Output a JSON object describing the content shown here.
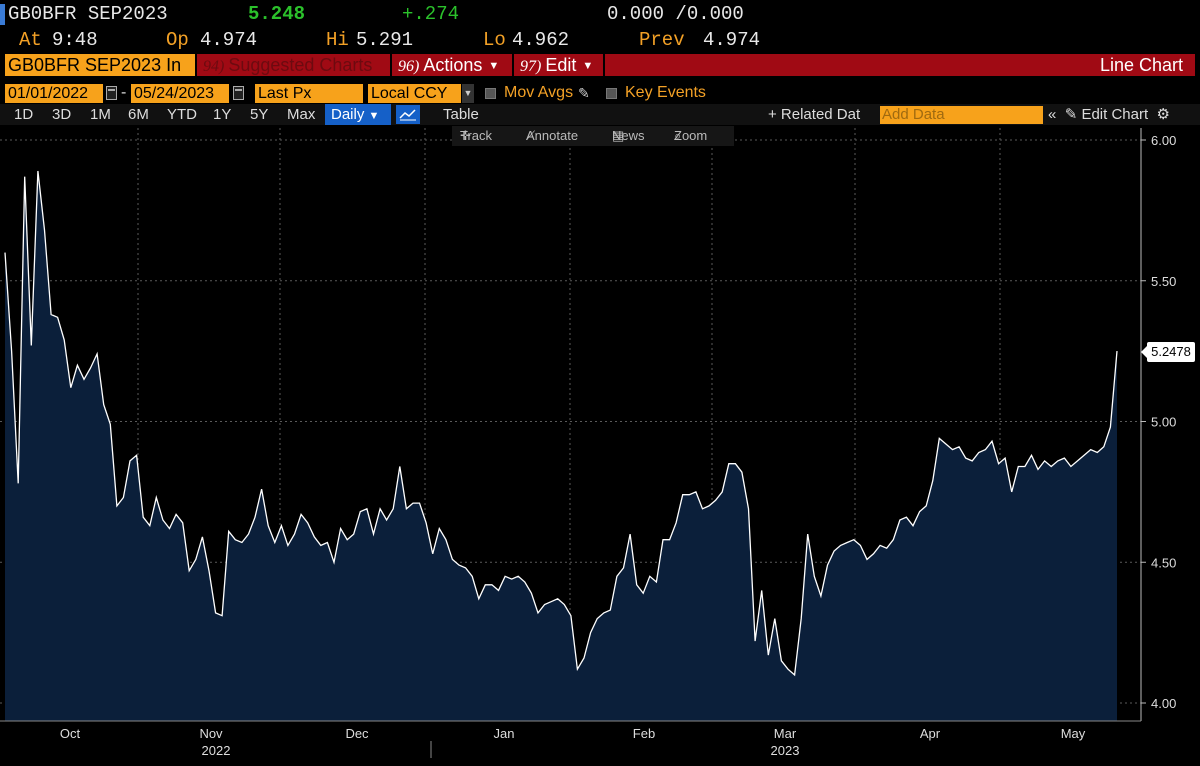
{
  "header": {
    "ticker": "GB0BFR SEP2023",
    "last": "5.248",
    "change": "+.274",
    "bid_ask": "0.000 /0.000",
    "at_label": "At",
    "time": "9:48",
    "op_label": "Op",
    "op": "4.974",
    "hi_label": "Hi",
    "hi": "5.291",
    "lo_label": "Lo",
    "lo": "4.962",
    "prev_label": "Prev",
    "prev": "4.974"
  },
  "menubar": {
    "ticker_field": "GB0BFR SEP2023 In",
    "suggested_num": "94)",
    "suggested_label": "Suggested Charts",
    "actions_num": "96)",
    "actions_label": "Actions",
    "edit_num": "97)",
    "edit_label": "Edit",
    "title": "Line Chart"
  },
  "controls": {
    "start_date": "01/01/2022",
    "dash": "-",
    "end_date": "05/24/2023",
    "field": "Last Px",
    "currency": "Local CCY",
    "mov_avgs": "Mov Avgs",
    "key_events": "Key Events"
  },
  "ranges": [
    "1D",
    "3D",
    "1M",
    "6M",
    "YTD",
    "1Y",
    "5Y",
    "Max"
  ],
  "period": "Daily",
  "table_label": "Table",
  "related_label": "+ Related Dat",
  "add_data_placeholder": "Add Data",
  "edit_chart_label": "Edit Chart",
  "tools": {
    "track": "Track",
    "annotate": "Annotate",
    "news": "News",
    "zoom": "Zoom"
  },
  "colors": {
    "amber": "#f3a126",
    "red_bar": "#a00a14",
    "selected_blue": "#1560c8",
    "area_fill": "#0b1f3a",
    "line": "#ffffff",
    "positive": "#2bc12b"
  },
  "chart_data": {
    "type": "area",
    "y_axis_side": "right",
    "ylim": [
      3.95,
      6.05
    ],
    "yticks": [
      "4.00",
      "4.50",
      "5.00",
      "5.50",
      "6.00"
    ],
    "last_value_label": "5.2478",
    "grid": true,
    "month_labels": [
      "Oct",
      "Nov",
      "Dec",
      "Jan",
      "Feb",
      "Mar",
      "Apr",
      "May"
    ],
    "year_labels": [
      "2022",
      "2023"
    ],
    "series": [
      {
        "values": [
          5.6,
          5.25,
          4.78,
          5.87,
          5.27,
          5.89,
          5.68,
          5.38,
          5.37,
          5.29,
          5.12,
          5.2,
          5.15,
          5.19,
          5.24,
          5.06,
          4.99,
          4.7,
          4.73,
          4.86,
          4.88,
          4.66,
          4.63,
          4.73,
          4.65,
          4.62,
          4.67,
          4.64,
          4.47,
          4.51,
          4.59,
          4.47,
          4.32,
          4.31,
          4.61,
          4.58,
          4.57,
          4.6,
          4.66,
          4.76,
          4.63,
          4.57,
          4.63,
          4.56,
          4.6,
          4.67,
          4.64,
          4.59,
          4.56,
          4.57,
          4.5,
          4.62,
          4.58,
          4.6,
          4.68,
          4.69,
          4.6,
          4.69,
          4.65,
          4.69,
          4.84,
          4.69,
          4.71,
          4.71,
          4.64,
          4.53,
          4.62,
          4.58,
          4.51,
          4.49,
          4.48,
          4.45,
          4.37,
          4.42,
          4.42,
          4.4,
          4.45,
          4.44,
          4.45,
          4.43,
          4.39,
          4.32,
          4.35,
          4.36,
          4.37,
          4.35,
          4.31,
          4.12,
          4.16,
          4.25,
          4.3,
          4.32,
          4.33,
          4.45,
          4.48,
          4.6,
          4.42,
          4.39,
          4.45,
          4.43,
          4.58,
          4.58,
          4.64,
          4.74,
          4.74,
          4.75,
          4.69,
          4.7,
          4.72,
          4.75,
          4.85,
          4.85,
          4.82,
          4.69,
          4.22,
          4.4,
          4.17,
          4.3,
          4.15,
          4.12,
          4.1,
          4.3,
          4.6,
          4.45,
          4.38,
          4.49,
          4.54,
          4.56,
          4.57,
          4.58,
          4.56,
          4.51,
          4.53,
          4.56,
          4.55,
          4.58,
          4.65,
          4.66,
          4.63,
          4.68,
          4.7,
          4.79,
          4.94,
          4.92,
          4.9,
          4.91,
          4.87,
          4.86,
          4.89,
          4.9,
          4.93,
          4.85,
          4.87,
          4.75,
          4.84,
          4.84,
          4.88,
          4.83,
          4.86,
          4.84,
          4.86,
          4.87,
          4.84,
          4.86,
          4.88,
          4.9,
          4.89,
          4.91,
          4.98,
          5.25
        ]
      }
    ]
  }
}
